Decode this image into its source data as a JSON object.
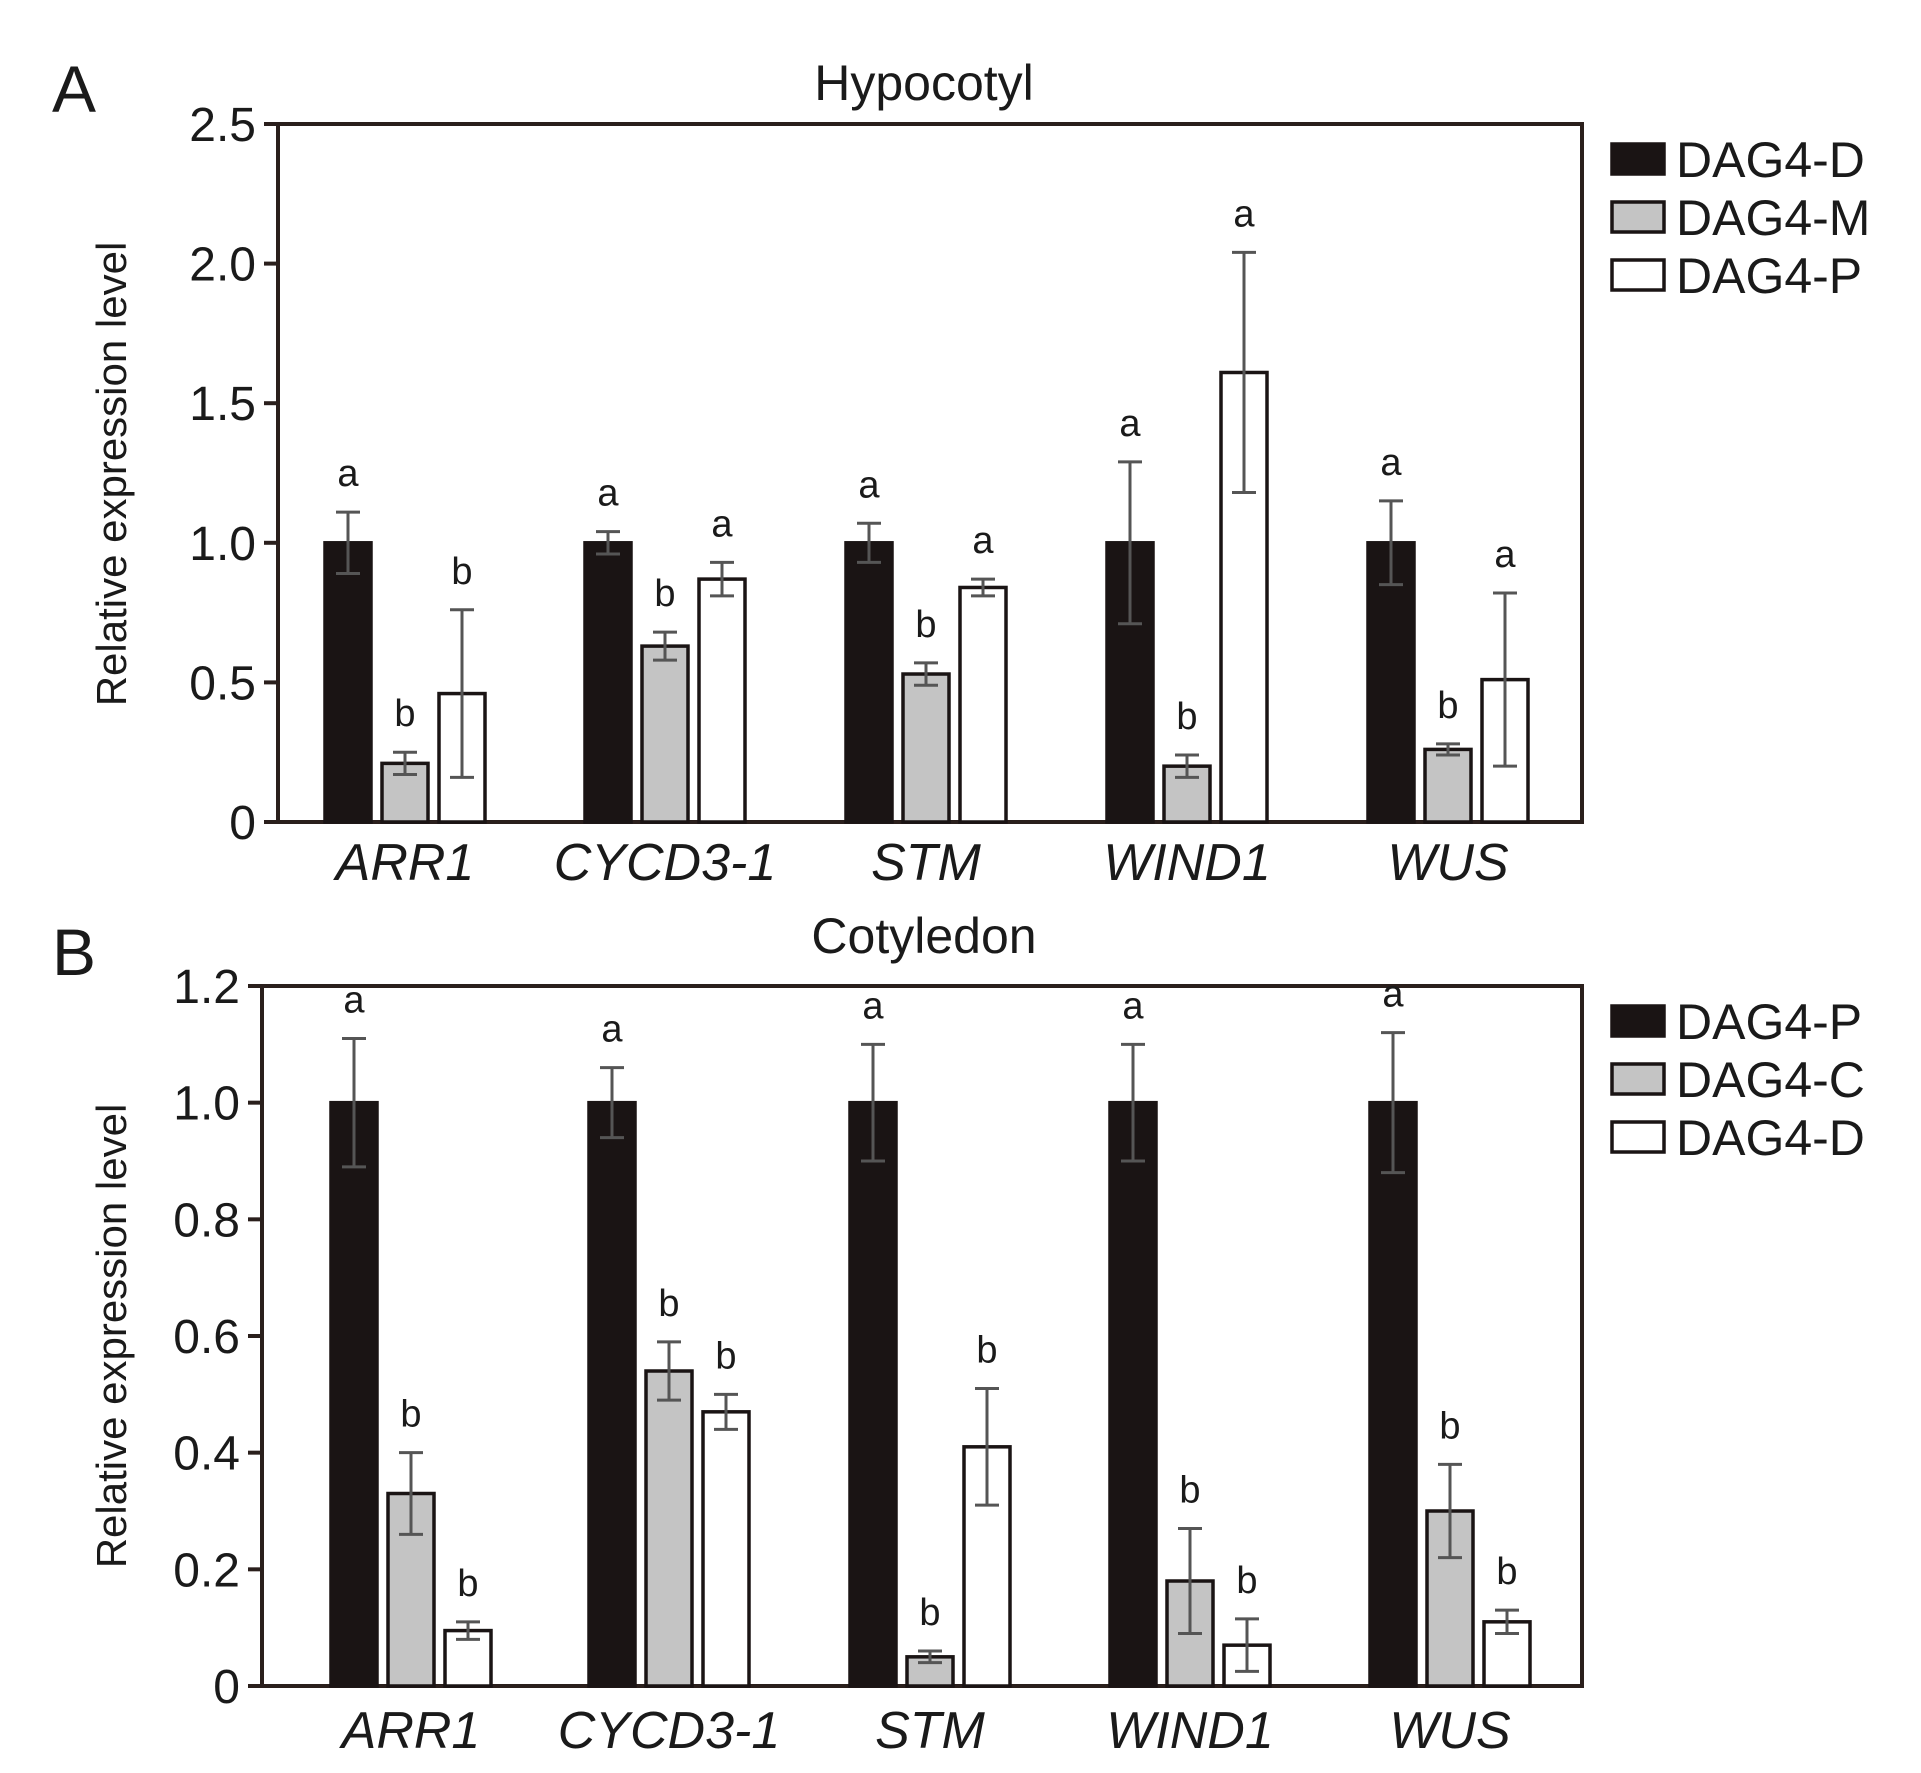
{
  "chart_data": [
    {
      "panel": "A",
      "type": "bar",
      "title": "Hypocotyl",
      "xlabel": "",
      "ylabel": "Relative expression level",
      "ylim": [
        0,
        2.5
      ],
      "yticks": [
        0,
        0.5,
        1.0,
        1.5,
        2.0,
        2.5
      ],
      "ytick_labels": [
        "0",
        "0.5",
        "1.0",
        "1.5",
        "2.0",
        "2.5"
      ],
      "grid": false,
      "legend_position": "right",
      "categories": [
        "ARR1",
        "CYCD3-1",
        "STM",
        "WIND1",
        "WUS"
      ],
      "series": [
        {
          "name": "DAG4-D",
          "color": "#1a1414",
          "values": [
            1.0,
            1.0,
            1.0,
            1.0,
            1.0
          ],
          "errors": [
            0.11,
            0.04,
            0.07,
            0.29,
            0.15
          ],
          "labels": [
            "a",
            "a",
            "a",
            "a",
            "a"
          ]
        },
        {
          "name": "DAG4-M",
          "color": "#c4c4c4",
          "values": [
            0.21,
            0.63,
            0.53,
            0.2,
            0.26
          ],
          "errors": [
            0.04,
            0.05,
            0.04,
            0.04,
            0.02
          ],
          "labels": [
            "b",
            "b",
            "b",
            "b",
            "b"
          ]
        },
        {
          "name": "DAG4-P",
          "color": "#ffffff",
          "values": [
            0.46,
            0.87,
            0.84,
            1.61,
            0.51
          ],
          "errors": [
            0.3,
            0.06,
            0.03,
            0.43,
            0.31
          ],
          "labels": [
            "b",
            "a",
            "a",
            "a",
            "a"
          ]
        }
      ]
    },
    {
      "panel": "B",
      "type": "bar",
      "title": "Cotyledon",
      "xlabel": "",
      "ylabel": "Relative expression level",
      "ylim": [
        0,
        1.2
      ],
      "yticks": [
        0,
        0.2,
        0.4,
        0.6,
        0.8,
        1.0,
        1.2
      ],
      "ytick_labels": [
        "0",
        "0.2",
        "0.4",
        "0.6",
        "0.8",
        "1.0",
        "1.2"
      ],
      "grid": false,
      "legend_position": "right",
      "categories": [
        "ARR1",
        "CYCD3-1",
        "STM",
        "WIND1",
        "WUS"
      ],
      "series": [
        {
          "name": "DAG4-P",
          "color": "#1a1414",
          "values": [
            1.0,
            1.0,
            1.0,
            1.0,
            1.0
          ],
          "errors": [
            0.11,
            0.06,
            0.1,
            0.1,
            0.12
          ],
          "labels": [
            "a",
            "a",
            "a",
            "a",
            "a"
          ]
        },
        {
          "name": "DAG4-C",
          "color": "#c4c4c4",
          "values": [
            0.33,
            0.54,
            0.05,
            0.18,
            0.3
          ],
          "errors": [
            0.07,
            0.05,
            0.01,
            0.09,
            0.08
          ],
          "labels": [
            "b",
            "b",
            "b",
            "b",
            "b"
          ]
        },
        {
          "name": "DAG4-D",
          "color": "#ffffff",
          "values": [
            0.095,
            0.47,
            0.41,
            0.07,
            0.11
          ],
          "errors": [
            0.015,
            0.03,
            0.1,
            0.045,
            0.02
          ],
          "labels": [
            "b",
            "b",
            "b",
            "b",
            "b"
          ]
        }
      ]
    }
  ]
}
